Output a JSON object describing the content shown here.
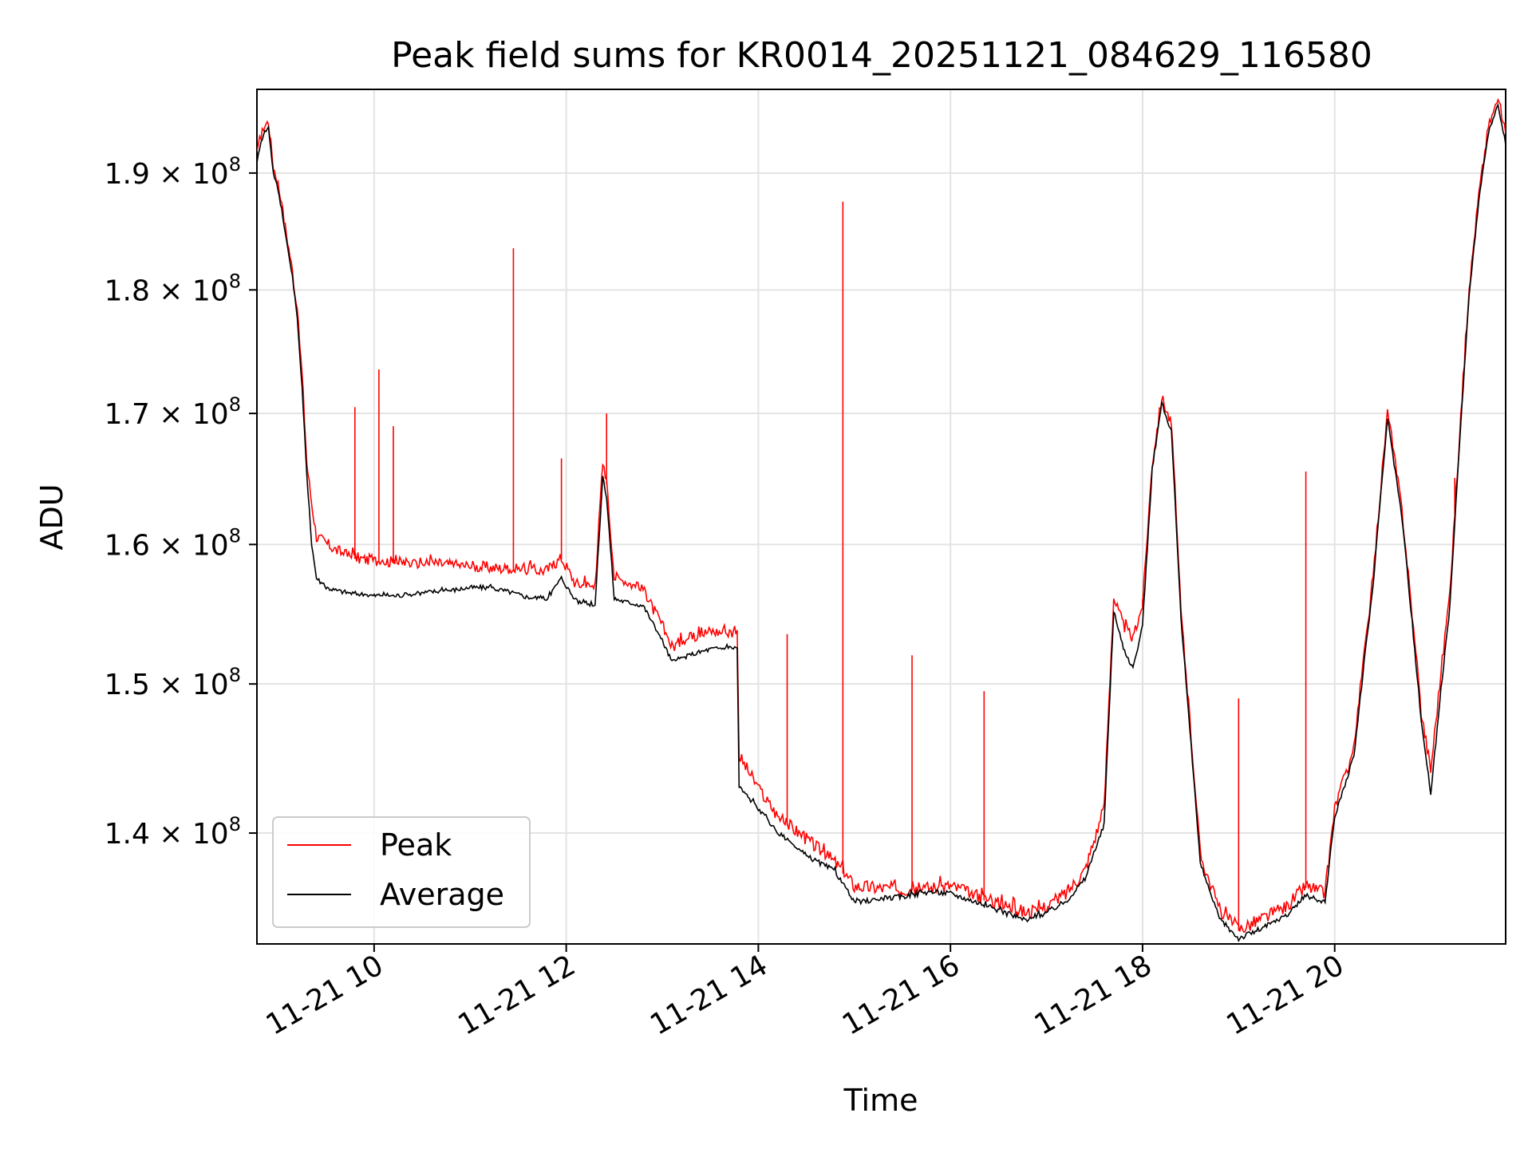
{
  "chart_data": {
    "type": "line",
    "title": "Peak field sums for KR0014_20251121_084629_116580",
    "xlabel": "Time",
    "ylabel": "ADU",
    "xlim": [
      8.78,
      21.78
    ],
    "ylim": [
      133000000,
      197500000
    ],
    "yscale": "log",
    "grid": true,
    "legend_position": "lower-left",
    "x_ticks": [
      {
        "value": 10,
        "label": "11-21 10"
      },
      {
        "value": 12,
        "label": "11-21 12"
      },
      {
        "value": 14,
        "label": "11-21 14"
      },
      {
        "value": 16,
        "label": "11-21 16"
      },
      {
        "value": 18,
        "label": "11-21 18"
      },
      {
        "value": 20,
        "label": "11-21 20"
      }
    ],
    "y_ticks": [
      {
        "value": 140000000,
        "mantissa": "1.4",
        "base": "10",
        "exp": "8"
      },
      {
        "value": 150000000,
        "mantissa": "1.5",
        "base": "10",
        "exp": "8"
      },
      {
        "value": 160000000,
        "mantissa": "1.6",
        "base": "10",
        "exp": "8"
      },
      {
        "value": 170000000,
        "mantissa": "1.7",
        "base": "10",
        "exp": "8"
      },
      {
        "value": 180000000,
        "mantissa": "1.8",
        "base": "10",
        "exp": "8"
      },
      {
        "value": 190000000,
        "mantissa": "1.9",
        "base": "10",
        "exp": "8"
      }
    ],
    "series": [
      {
        "name": "Peak",
        "color": "#ff0000",
        "x": [
          8.78,
          8.85,
          8.9,
          8.95,
          9.0,
          9.05,
          9.1,
          9.15,
          9.2,
          9.25,
          9.3,
          9.35,
          9.4,
          9.5,
          9.6,
          9.75,
          9.9,
          10.0,
          10.1,
          10.2,
          10.4,
          10.6,
          10.8,
          11.0,
          11.2,
          11.4,
          11.6,
          11.8,
          11.95,
          12.1,
          12.3,
          12.38,
          12.42,
          12.5,
          12.6,
          12.8,
          13.0,
          13.1,
          13.3,
          13.5,
          13.7,
          13.78,
          13.8,
          14.0,
          14.2,
          14.5,
          14.8,
          15.0,
          15.2,
          15.5,
          15.8,
          16.0,
          16.3,
          16.6,
          16.8,
          17.0,
          17.2,
          17.4,
          17.6,
          17.7,
          17.8,
          17.9,
          18.0,
          18.1,
          18.2,
          18.3,
          18.4,
          18.6,
          18.8,
          19.0,
          19.2,
          19.5,
          19.7,
          19.9,
          20.0,
          20.2,
          20.4,
          20.55,
          20.7,
          20.9,
          21.0,
          21.2,
          21.3,
          21.4,
          21.5,
          21.6,
          21.7,
          21.78
        ],
        "y": [
          191500000,
          194000000,
          194500000,
          190500000,
          189000000,
          186500000,
          184000000,
          181500000,
          178000000,
          173000000,
          166000000,
          163000000,
          160500000,
          160000000,
          159500000,
          159000000,
          158800000,
          158700000,
          158700000,
          158600000,
          158500000,
          158500000,
          158400000,
          158300000,
          158200000,
          158100000,
          158000000,
          158000000,
          158900000,
          157000000,
          156800000,
          166000000,
          164500000,
          157500000,
          157300000,
          156500000,
          154000000,
          152500000,
          153200000,
          153600000,
          153500000,
          153500000,
          145000000,
          142800000,
          141000000,
          139500000,
          138000000,
          136500000,
          136400000,
          136300000,
          136400000,
          136500000,
          135800000,
          135200000,
          134800000,
          135200000,
          136000000,
          137500000,
          141500000,
          156000000,
          154000000,
          153000000,
          155500000,
          166000000,
          171200000,
          169000000,
          155000000,
          138500000,
          135000000,
          133800000,
          134300000,
          135200000,
          136500000,
          136000000,
          141500000,
          145500000,
          157500000,
          170000000,
          162500000,
          148000000,
          144000000,
          156500000,
          168000000,
          180000000,
          188000000,
          194000000,
          196500000,
          193500000
        ],
        "spikes": [
          {
            "x": 10.05,
            "y": 173500000
          },
          {
            "x": 10.2,
            "y": 169000000
          },
          {
            "x": 9.8,
            "y": 170500000
          },
          {
            "x": 11.45,
            "y": 183500000
          },
          {
            "x": 11.95,
            "y": 166500000
          },
          {
            "x": 12.42,
            "y": 170000000
          },
          {
            "x": 14.3,
            "y": 153500000
          },
          {
            "x": 14.88,
            "y": 187500000
          },
          {
            "x": 15.6,
            "y": 152000000
          },
          {
            "x": 16.35,
            "y": 149500000
          },
          {
            "x": 18.0,
            "y": 156000000
          },
          {
            "x": 19.0,
            "y": 149000000
          },
          {
            "x": 19.7,
            "y": 165500000
          },
          {
            "x": 21.25,
            "y": 165000000
          }
        ]
      },
      {
        "name": "Average",
        "color": "#000000",
        "x": [
          8.78,
          8.85,
          8.9,
          8.95,
          9.0,
          9.05,
          9.1,
          9.15,
          9.2,
          9.25,
          9.3,
          9.35,
          9.4,
          9.5,
          9.6,
          9.75,
          9.9,
          10.0,
          10.1,
          10.2,
          10.4,
          10.6,
          10.8,
          11.0,
          11.2,
          11.4,
          11.6,
          11.8,
          11.95,
          12.1,
          12.3,
          12.38,
          12.42,
          12.5,
          12.6,
          12.8,
          13.0,
          13.1,
          13.3,
          13.5,
          13.7,
          13.78,
          13.8,
          14.0,
          14.2,
          14.5,
          14.8,
          15.0,
          15.2,
          15.5,
          15.8,
          16.0,
          16.3,
          16.6,
          16.8,
          17.0,
          17.2,
          17.4,
          17.6,
          17.7,
          17.8,
          17.9,
          18.0,
          18.1,
          18.2,
          18.3,
          18.4,
          18.6,
          18.8,
          19.0,
          19.2,
          19.5,
          19.7,
          19.9,
          20.0,
          20.2,
          20.4,
          20.55,
          20.7,
          20.9,
          21.0,
          21.2,
          21.3,
          21.4,
          21.5,
          21.6,
          21.7,
          21.78
        ],
        "y": [
          191000000,
          193500000,
          194000000,
          190000000,
          188500000,
          186000000,
          183500000,
          181000000,
          177500000,
          172000000,
          165000000,
          160000000,
          157500000,
          156800000,
          156600000,
          156400000,
          156300000,
          156200000,
          156300000,
          156200000,
          156300000,
          156500000,
          156600000,
          156800000,
          156800000,
          156500000,
          156100000,
          156000000,
          157500000,
          155800000,
          155500000,
          165000000,
          163500000,
          156000000,
          155800000,
          155500000,
          153000000,
          151500000,
          152000000,
          152400000,
          152500000,
          152500000,
          143000000,
          141500000,
          140000000,
          138500000,
          137500000,
          135500000,
          135700000,
          135900000,
          136200000,
          136100000,
          135500000,
          134800000,
          134400000,
          134900000,
          135600000,
          137000000,
          140500000,
          155000000,
          152500000,
          151000000,
          154000000,
          165500000,
          170800000,
          168500000,
          154500000,
          138000000,
          134500000,
          133300000,
          133800000,
          134700000,
          136000000,
          135500000,
          141000000,
          145000000,
          157000000,
          169500000,
          162000000,
          147500000,
          142500000,
          155500000,
          167500000,
          179500000,
          187500000,
          193500000,
          196000000,
          192500000
        ]
      }
    ]
  }
}
